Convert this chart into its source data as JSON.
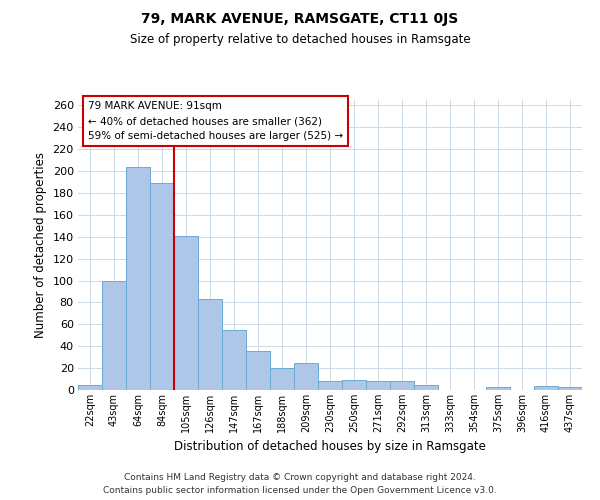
{
  "title": "79, MARK AVENUE, RAMSGATE, CT11 0JS",
  "subtitle": "Size of property relative to detached houses in Ramsgate",
  "xlabel": "Distribution of detached houses by size in Ramsgate",
  "ylabel": "Number of detached properties",
  "categories": [
    "22sqm",
    "43sqm",
    "64sqm",
    "84sqm",
    "105sqm",
    "126sqm",
    "147sqm",
    "167sqm",
    "188sqm",
    "209sqm",
    "230sqm",
    "250sqm",
    "271sqm",
    "292sqm",
    "313sqm",
    "333sqm",
    "354sqm",
    "375sqm",
    "396sqm",
    "416sqm",
    "437sqm"
  ],
  "values": [
    5,
    100,
    204,
    189,
    141,
    83,
    55,
    36,
    20,
    25,
    8,
    9,
    8,
    8,
    5,
    0,
    0,
    3,
    0,
    4,
    3
  ],
  "bar_color": "#aec6e8",
  "bar_edge_color": "#6aaad4",
  "bar_width": 1.0,
  "vline_pos": 3.5,
  "vline_color": "#cc0000",
  "ylim": [
    0,
    265
  ],
  "yticks": [
    0,
    20,
    40,
    60,
    80,
    100,
    120,
    140,
    160,
    180,
    200,
    220,
    240,
    260
  ],
  "annotation_title": "79 MARK AVENUE: 91sqm",
  "annotation_line1": "← 40% of detached houses are smaller (362)",
  "annotation_line2": "59% of semi-detached houses are larger (525) →",
  "annotation_box_color": "#cc0000",
  "background_color": "#ffffff",
  "grid_color": "#ccd9e8",
  "footer_line1": "Contains HM Land Registry data © Crown copyright and database right 2024.",
  "footer_line2": "Contains public sector information licensed under the Open Government Licence v3.0."
}
